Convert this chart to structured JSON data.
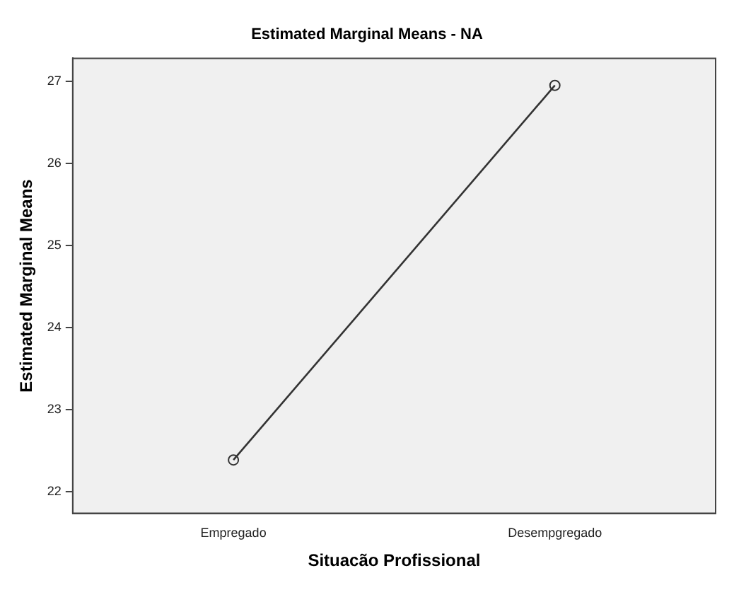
{
  "chart_data": {
    "type": "line",
    "title": "Estimated Marginal Means - NA",
    "xlabel": "Situacão Profissional",
    "ylabel": "Estimated Marginal Means",
    "categories": [
      "Empregado",
      "Desempgregado"
    ],
    "series": [
      {
        "color": "#333333",
        "values": [
          22.39,
          26.95
        ]
      }
    ],
    "ylim": [
      21.74,
      27.28
    ],
    "yticks": [
      22,
      23,
      24,
      25,
      26,
      27
    ],
    "grid": false,
    "legend": false,
    "marker": "circle"
  }
}
